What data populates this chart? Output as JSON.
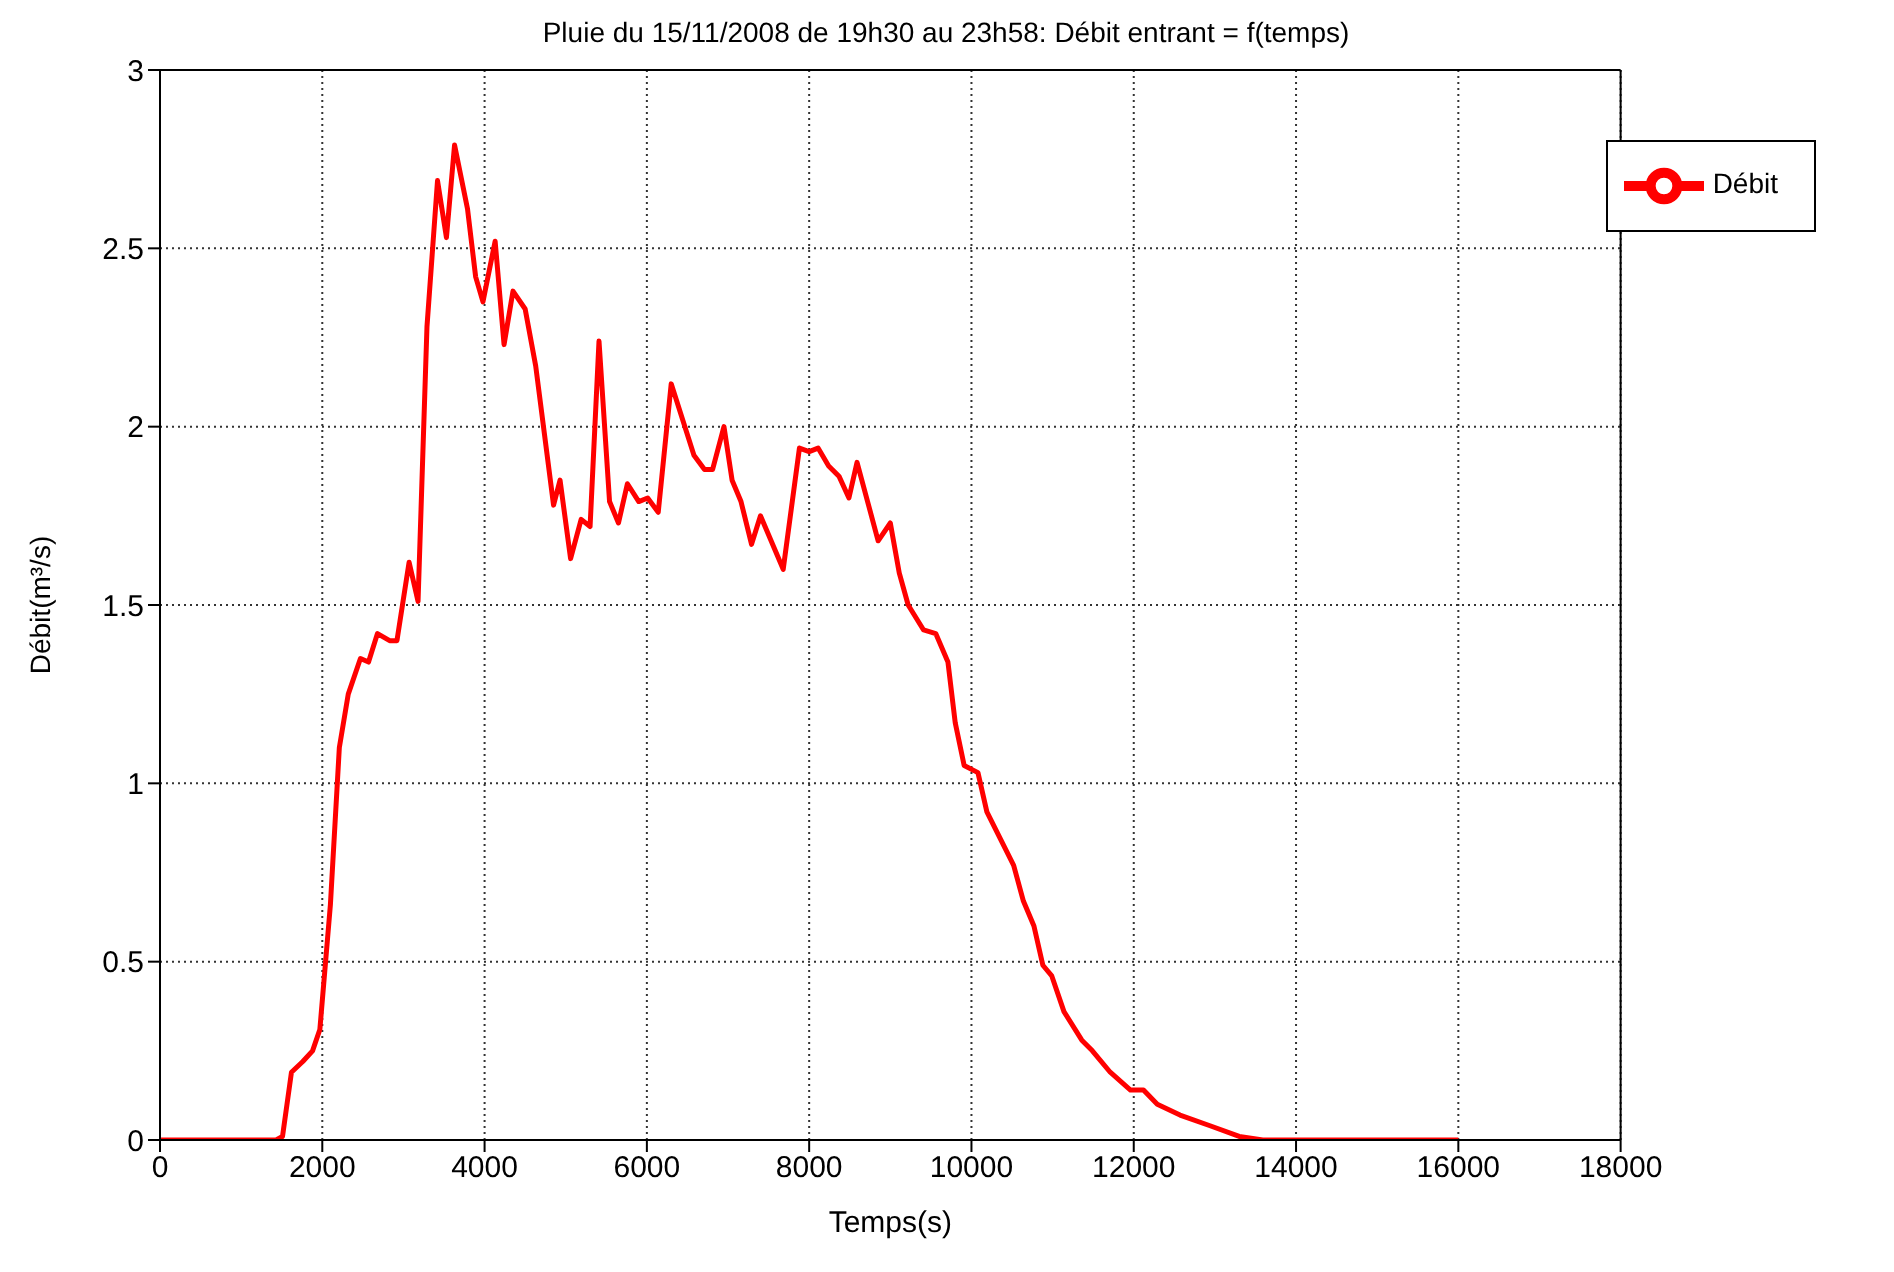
{
  "chart_data": {
    "type": "line",
    "title": "Pluie du 15/11/2008 de 19h30 au 23h58: Débit entrant = f(temps)",
    "xlabel": "Temps(s)",
    "ylabel": "Débit(m³/s)",
    "x": [
      0,
      1430,
      1510,
      1620,
      1760,
      1880,
      1970,
      2100,
      2210,
      2320,
      2470,
      2570,
      2680,
      2830,
      2920,
      3070,
      3180,
      3290,
      3420,
      3530,
      3630,
      3790,
      3890,
      3980,
      4130,
      4240,
      4350,
      4500,
      4630,
      4850,
      4930,
      5060,
      5190,
      5300,
      5410,
      5540,
      5650,
      5760,
      5900,
      6010,
      6140,
      6300,
      6580,
      6710,
      6810,
      6950,
      7050,
      7160,
      7290,
      7400,
      7680,
      7880,
      8000,
      8110,
      8240,
      8370,
      8490,
      8590,
      8720,
      8850,
      9000,
      9110,
      9220,
      9410,
      9560,
      9710,
      9800,
      9910,
      10080,
      10190,
      10520,
      10640,
      10770,
      10880,
      10990,
      11140,
      11360,
      11490,
      11710,
      11960,
      12120,
      12290,
      12570,
      12940,
      13300,
      13590,
      16000
    ],
    "series": [
      {
        "name": "Débit",
        "color": "#ff0000",
        "values": [
          0,
          0,
          0.01,
          0.19,
          0.22,
          0.25,
          0.31,
          0.66,
          1.1,
          1.25,
          1.35,
          1.34,
          1.42,
          1.4,
          1.4,
          1.62,
          1.51,
          2.28,
          2.69,
          2.53,
          2.79,
          2.61,
          2.42,
          2.35,
          2.52,
          2.23,
          2.38,
          2.33,
          2.17,
          1.78,
          1.85,
          1.63,
          1.74,
          1.72,
          2.24,
          1.79,
          1.73,
          1.84,
          1.79,
          1.8,
          1.76,
          2.12,
          1.92,
          1.88,
          1.88,
          2.0,
          1.85,
          1.79,
          1.67,
          1.75,
          1.6,
          1.94,
          1.93,
          1.94,
          1.89,
          1.86,
          1.8,
          1.9,
          1.79,
          1.68,
          1.73,
          1.59,
          1.5,
          1.43,
          1.42,
          1.34,
          1.17,
          1.05,
          1.03,
          0.92,
          0.77,
          0.67,
          0.6,
          0.49,
          0.46,
          0.36,
          0.28,
          0.25,
          0.19,
          0.14,
          0.14,
          0.1,
          0.07,
          0.04,
          0.01,
          0,
          0
        ]
      }
    ],
    "xlim": [
      0,
      18000
    ],
    "xticks": [
      0,
      2000,
      4000,
      6000,
      8000,
      10000,
      12000,
      14000,
      16000,
      18000
    ],
    "ylim": [
      0,
      3
    ],
    "yticks": [
      0,
      0.5,
      1,
      1.5,
      2,
      2.5,
      3
    ],
    "grid": true,
    "legend": "top right",
    "marker": "none",
    "line_style": "solid"
  }
}
